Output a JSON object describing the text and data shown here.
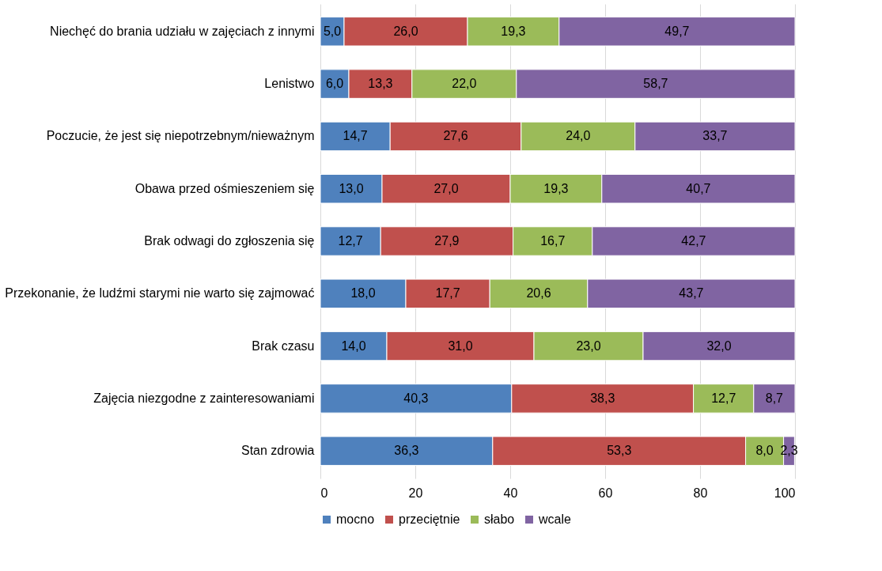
{
  "chart_data": {
    "type": "bar",
    "orientation": "horizontal",
    "stacked": true,
    "categories": [
      "Niechęć do brania udziału w zajęciach z innymi",
      "Lenistwo",
      "Poczucie, że jest się niepotrzebnym/nieważnym",
      "Obawa przed ośmieszeniem się",
      "Brak odwagi do zgłoszenia się",
      "Przekonanie, że ludźmi starymi nie warto się zajmować",
      "Brak czasu",
      "Zajęcia niezgodne z zainteresowaniami",
      "Stan zdrowia"
    ],
    "series": [
      {
        "name": "mocno",
        "color": "#4f81bd",
        "values": [
          5.0,
          6.0,
          14.7,
          13.0,
          12.7,
          18.0,
          14.0,
          40.3,
          36.3
        ],
        "value_labels": [
          "5,0",
          "6,0",
          "14,7",
          "13,0",
          "12,7",
          "18,0",
          "14,0",
          "40,3",
          "36,3"
        ]
      },
      {
        "name": "przeciętnie",
        "color": "#c0504d",
        "values": [
          26.0,
          13.3,
          27.6,
          27.0,
          27.9,
          17.7,
          31.0,
          38.3,
          53.3
        ],
        "value_labels": [
          "26,0",
          "13,3",
          "27,6",
          "27,0",
          "27,9",
          "17,7",
          "31,0",
          "38,3",
          "53,3"
        ]
      },
      {
        "name": "słabo",
        "color": "#9bbb59",
        "values": [
          19.3,
          22.0,
          24.0,
          19.3,
          16.7,
          20.6,
          23.0,
          12.7,
          8.0
        ],
        "value_labels": [
          "19,3",
          "22,0",
          "24,0",
          "19,3",
          "16,7",
          "20,6",
          "23,0",
          "12,7",
          "8,0"
        ]
      },
      {
        "name": "wcale",
        "color": "#8064a2",
        "values": [
          49.7,
          58.7,
          33.7,
          40.7,
          42.7,
          43.7,
          32.0,
          8.7,
          2.3
        ],
        "value_labels": [
          "49,7",
          "58,7",
          "33,7",
          "40,7",
          "42,7",
          "43,7",
          "32,0",
          "8,7",
          "2,3"
        ]
      }
    ],
    "xlim": [
      0,
      100
    ],
    "xticks": [
      0,
      20,
      40,
      60,
      80,
      100
    ],
    "grid": "x",
    "legend": "bottom"
  }
}
